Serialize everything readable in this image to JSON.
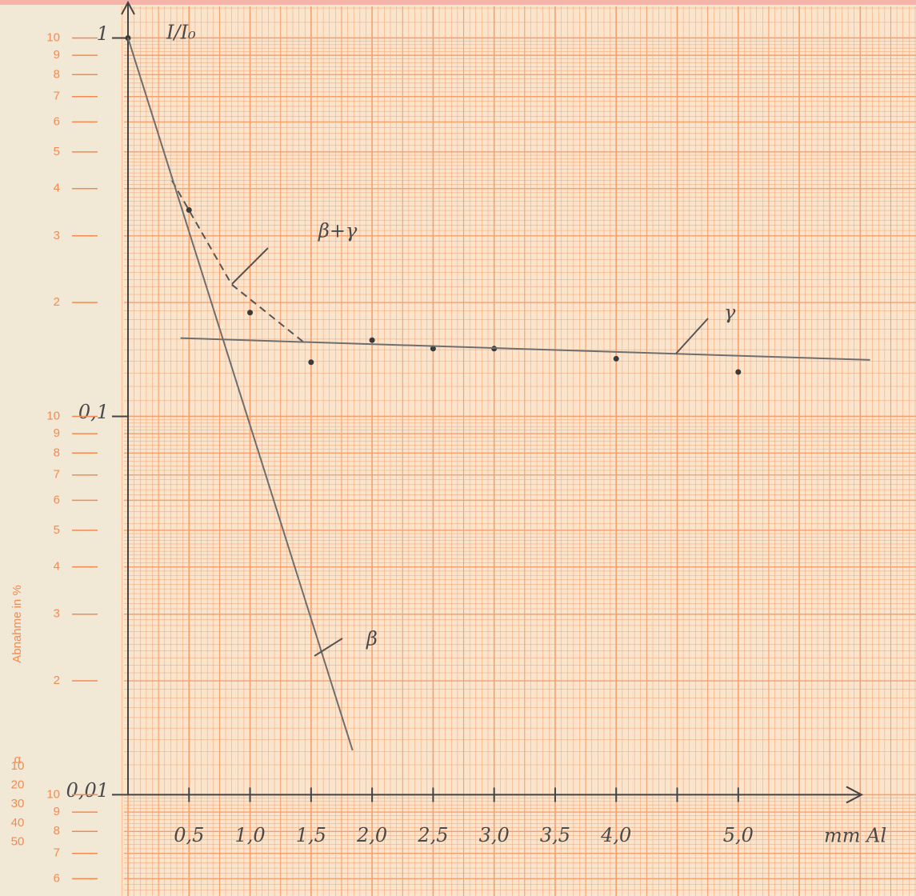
{
  "chart_data": {
    "type": "line",
    "y_label": "I/I₀",
    "x_label": "mm Al",
    "log_y": true,
    "xlim": [
      0,
      6.45
    ],
    "ylim": [
      0.0054,
      1.26
    ],
    "xticks": [
      {
        "value": 0.5,
        "label": "0,5"
      },
      {
        "value": 1.0,
        "label": "1,0"
      },
      {
        "value": 1.5,
        "label": "1,5"
      },
      {
        "value": 2.0,
        "label": "2,0"
      },
      {
        "value": 2.5,
        "label": "2,5"
      },
      {
        "value": 3.0,
        "label": "3,0"
      },
      {
        "value": 3.5,
        "label": "3,5"
      },
      {
        "value": 4.0,
        "label": "4,0"
      },
      {
        "value": 4.5,
        "label": null
      },
      {
        "value": 5.0,
        "label": "5,0"
      }
    ],
    "yticks": [
      {
        "value": 1,
        "label": "1"
      },
      {
        "value": 0.1,
        "label": "0,1"
      },
      {
        "value": 0.01,
        "label": "0,01"
      }
    ],
    "series": [
      {
        "style": "points",
        "color": "#3a3a3a",
        "x": [
          0,
          0.5,
          1.0,
          1.5,
          2.0,
          2.5,
          3.0,
          4.0,
          5.0
        ],
        "values": [
          1.0,
          0.351,
          0.188,
          0.139,
          0.159,
          0.151,
          0.151,
          0.142,
          0.131
        ]
      },
      {
        "name": "β+γ",
        "style": "dashed",
        "color": "#555555",
        "x": [
          0.36,
          0.85,
          1.44
        ],
        "values": [
          0.42,
          0.223,
          0.157
        ]
      },
      {
        "name": "γ",
        "style": "solid",
        "color": "#6e6e6e",
        "x": [
          0.43,
          6.08
        ],
        "values": [
          0.161,
          0.141
        ]
      },
      {
        "name": "β",
        "style": "solid",
        "color": "#6e6e6e",
        "x": [
          0,
          1.84
        ],
        "values": [
          1.0,
          0.0131
        ]
      }
    ],
    "paper_scale": {
      "title": "Abnahme in %",
      "ticks": [
        10,
        9,
        8,
        7,
        6,
        5,
        4,
        3,
        2
      ],
      "column_label": "α",
      "column_values": [
        10,
        20,
        30,
        40,
        50
      ]
    }
  }
}
